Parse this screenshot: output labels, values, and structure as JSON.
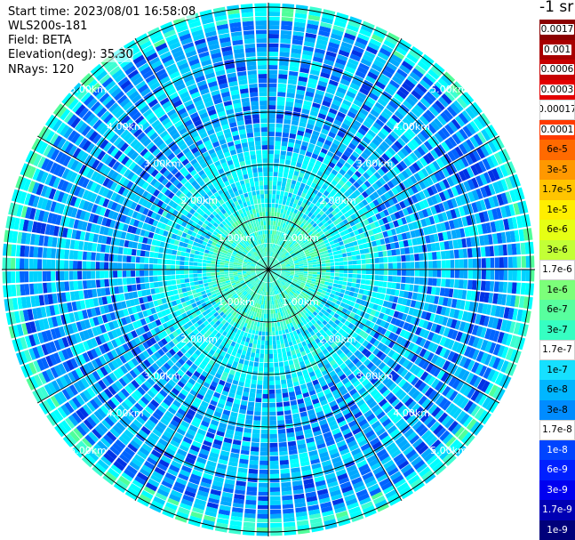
{
  "info": {
    "start_time": "Start time: 2023/08/01 16:58:08",
    "instrument": "WLS200s-181",
    "field": "Field: BETA",
    "elevation": "Elevation(deg): 35.30",
    "nrays": "NRays: 120"
  },
  "range_rings": {
    "labels": [
      "1.00km",
      "2.00km",
      "3.00km",
      "4.00km",
      "5.00km"
    ]
  },
  "colorbar": {
    "unit": "-1 sr",
    "ticks": [
      {
        "label": "0.0017",
        "color": "#8b0000",
        "style": "light"
      },
      {
        "label": "0.001",
        "color": "#a80000",
        "style": "light"
      },
      {
        "label": "0.0006",
        "color": "#c80000",
        "style": "light"
      },
      {
        "label": "0.0003",
        "color": "#e40000",
        "style": "light"
      },
      {
        "label": "0.00017",
        "color": "#ffffff",
        "style": "light"
      },
      {
        "label": "0.0001",
        "color": "#ff3a00",
        "style": "light"
      },
      {
        "label": "6e-5",
        "color": "#ff6a00",
        "style": "plain"
      },
      {
        "label": "3e-5",
        "color": "#ff9800",
        "style": "plain"
      },
      {
        "label": "1.7e-5",
        "color": "#ffc400",
        "style": "plain"
      },
      {
        "label": "1e-5",
        "color": "#ffee00",
        "style": "plain"
      },
      {
        "label": "6e-6",
        "color": "#e6ff14",
        "style": "plain"
      },
      {
        "label": "3e-6",
        "color": "#c2ff36",
        "style": "plain"
      },
      {
        "label": "1.7e-6",
        "color": "#ffffff",
        "style": "plain"
      },
      {
        "label": "1e-6",
        "color": "#7cff7a",
        "style": "plain"
      },
      {
        "label": "6e-7",
        "color": "#58ff9e",
        "style": "plain"
      },
      {
        "label": "3e-7",
        "color": "#36ffc2",
        "style": "plain"
      },
      {
        "label": "1.7e-7",
        "color": "#ffffff",
        "style": "plain"
      },
      {
        "label": "1e-7",
        "color": "#16e0ff",
        "style": "plain"
      },
      {
        "label": "6e-8",
        "color": "#00b6ff",
        "style": "plain"
      },
      {
        "label": "3e-8",
        "color": "#008cff",
        "style": "plain"
      },
      {
        "label": "1.7e-8",
        "color": "#ffffff",
        "style": "plain"
      },
      {
        "label": "1e-8",
        "color": "#0044ff",
        "style": "dark"
      },
      {
        "label": "6e-9",
        "color": "#0020ff",
        "style": "dark"
      },
      {
        "label": "3e-9",
        "color": "#0000f0",
        "style": "dark"
      },
      {
        "label": "1.7e-9",
        "color": "#0000b4",
        "style": "dark"
      },
      {
        "label": "1e-9",
        "color": "#00007a",
        "style": "dark"
      }
    ]
  },
  "palette": {
    "cyan": "#00ffff",
    "light_cyan": "#3cffd2",
    "aqua_blue": "#00d2ff",
    "sky_blue": "#00a8ff",
    "medium_blue": "#0064ff",
    "deep_blue": "#0032e6",
    "green": "#50ff9a",
    "ring_color": "#000000"
  }
}
